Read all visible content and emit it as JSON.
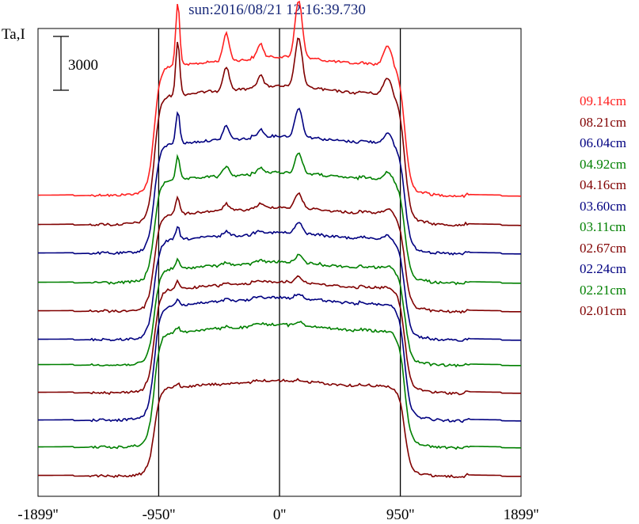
{
  "chart_data": {
    "type": "line",
    "title": "sun:2016/08/21 12:16:39.730",
    "ylabel": "Ta,I",
    "scale_bar_label": "3000",
    "x_ticks": [
      {
        "value": -1899,
        "label": "-1899''"
      },
      {
        "value": -950,
        "label": "-950''"
      },
      {
        "value": 0,
        "label": "0''"
      },
      {
        "value": 950,
        "label": "950''"
      },
      {
        "value": 1899,
        "label": "1899''"
      }
    ],
    "xlim": [
      -1899,
      1899
    ],
    "vertical_lines": [
      -950,
      0,
      950
    ],
    "series": [
      {
        "name": "09.14cm",
        "color": "#ff2020",
        "baseline": 248,
        "height": 175,
        "peak": 1.0
      },
      {
        "name": "08.21cm",
        "color": "#800000",
        "baseline": 285,
        "height": 175,
        "peak": 0.85
      },
      {
        "name": "06.04cm",
        "color": "#000080",
        "baseline": 321,
        "height": 148,
        "peak": 0.6
      },
      {
        "name": "04.92cm",
        "color": "#008000",
        "baseline": 358,
        "height": 139,
        "peak": 0.45
      },
      {
        "name": "04.16cm",
        "color": "#800000",
        "baseline": 394,
        "height": 131,
        "peak": 0.35
      },
      {
        "name": "03.60cm",
        "color": "#000080",
        "baseline": 430,
        "height": 135,
        "peak": 0.25
      },
      {
        "name": "03.11cm",
        "color": "#008000",
        "baseline": 462,
        "height": 130,
        "peak": 0.18
      },
      {
        "name": "02.67cm",
        "color": "#800000",
        "baseline": 497,
        "height": 140,
        "peak": 0.14
      },
      {
        "name": "02.24cm",
        "color": "#000080",
        "baseline": 532,
        "height": 155,
        "peak": 0.1
      },
      {
        "name": "02.21cm",
        "color": "#008000",
        "baseline": 566,
        "height": 155,
        "peak": 0.08
      },
      {
        "name": "02.01cm",
        "color": "#800000",
        "baseline": 602,
        "height": 120,
        "peak": 0.05
      }
    ]
  }
}
